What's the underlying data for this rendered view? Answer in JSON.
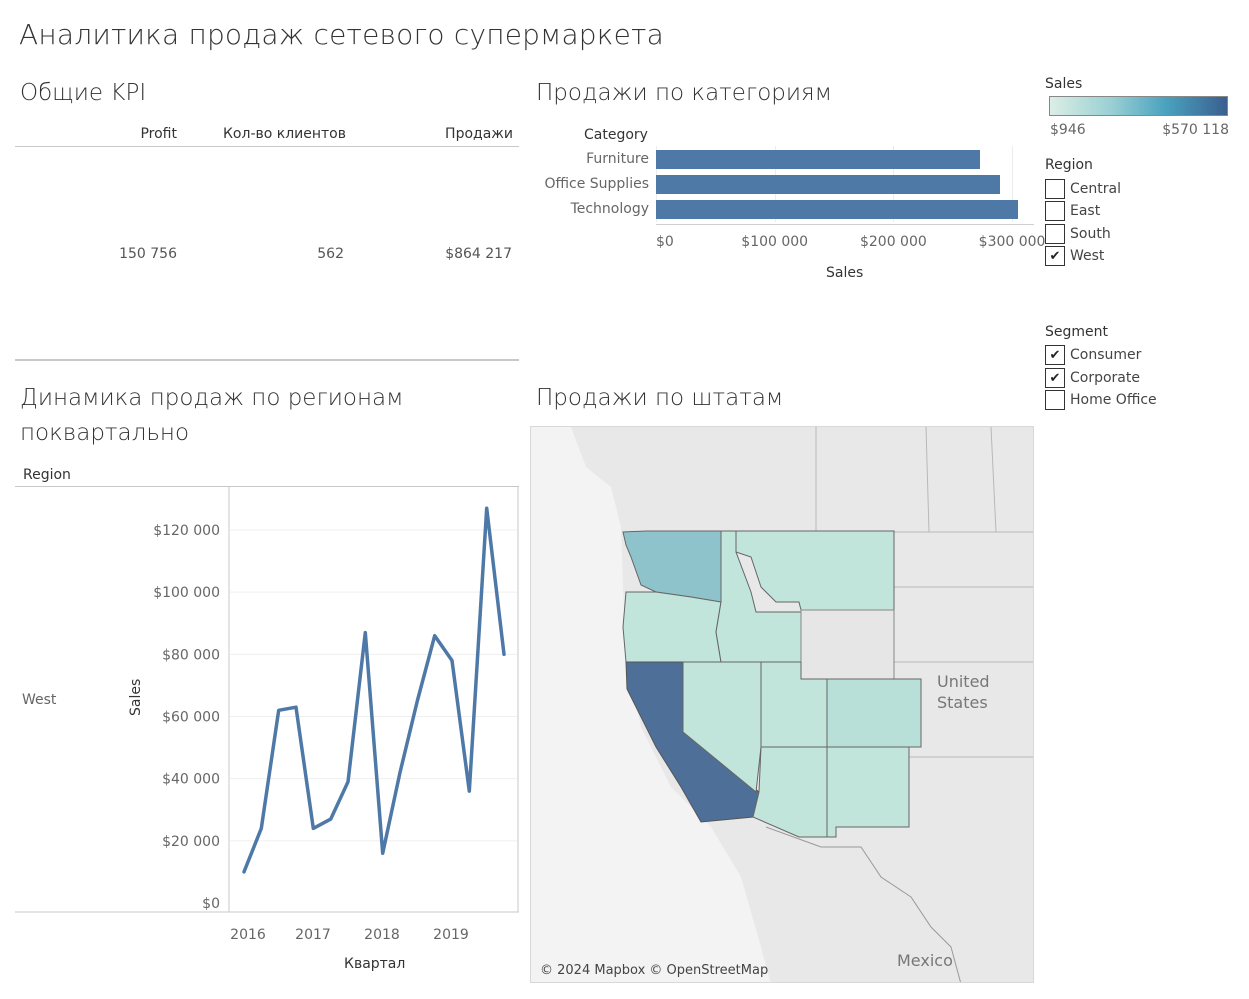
{
  "dashboard": {
    "title": "Аналитика продаж сетевого супермаркета"
  },
  "kpi": {
    "title": "Общие KPI",
    "headers": [
      "Profit",
      "Кол-во клиентов",
      "Продажи"
    ],
    "values": [
      "150 756",
      "562",
      "$864 217"
    ]
  },
  "categories_panel": {
    "title": "Продажи по категориям",
    "category_header": "Category",
    "xlabel": "Sales",
    "ticks": [
      "$0",
      "$100 000",
      "$200 000",
      "$300 000"
    ]
  },
  "line_panel": {
    "title_line1": "Динамика продаж по регионам",
    "title_line2": "поквартально",
    "region_header": "Region",
    "row_label": "West",
    "ylabel": "Sales",
    "xlabel": "Квартал",
    "y_ticks": [
      "$120 000",
      "$100 000",
      "$80 000",
      "$60 000",
      "$40 000",
      "$20 000",
      "$0"
    ],
    "x_ticks": [
      "2016",
      "2017",
      "2018",
      "2019"
    ]
  },
  "map_panel": {
    "title": "Продажи по штатам",
    "label_country_1": "United",
    "label_country_2": "States",
    "label_mexico": "Mexico",
    "attribution": "© 2024 Mapbox © OpenStreetMap"
  },
  "legend": {
    "sales_title": "Sales",
    "sales_min": "$946",
    "sales_max": "$570 118",
    "gradient_start": "#dbeee5",
    "gradient_end": "#3a5f8f",
    "region_title": "Region",
    "regions": [
      {
        "label": "Central",
        "checked": false
      },
      {
        "label": "East",
        "checked": false
      },
      {
        "label": "South",
        "checked": false
      },
      {
        "label": "West",
        "checked": true
      }
    ],
    "segment_title": "Segment",
    "segments": [
      {
        "label": "Consumer",
        "checked": true
      },
      {
        "label": "Corporate",
        "checked": true
      },
      {
        "label": "Home Office",
        "checked": false
      }
    ]
  },
  "colors": {
    "bar": "#4e79a7",
    "line": "#4e79a7",
    "california": "#4e6f97",
    "washington": "#8fc3cc",
    "light_state": "#c1e4db"
  },
  "chart_data": [
    {
      "type": "bar",
      "title": "Продажи по категориям",
      "categories": [
        "Furniture",
        "Office Supplies",
        "Technology"
      ],
      "values": [
        273000,
        290000,
        305000
      ],
      "xlabel": "Sales",
      "ylabel": "Category",
      "xlim": [
        0,
        315000
      ],
      "grid": true
    },
    {
      "type": "line",
      "title": "Динамика продаж по регионам поквартально",
      "series": [
        {
          "name": "West",
          "x": [
            "2016 Q1",
            "2016 Q2",
            "2016 Q3",
            "2016 Q4",
            "2017 Q1",
            "2017 Q2",
            "2017 Q3",
            "2017 Q4",
            "2018 Q1",
            "2018 Q2",
            "2018 Q3",
            "2018 Q4",
            "2019 Q1",
            "2019 Q2",
            "2019 Q3",
            "2019 Q4"
          ],
          "values": [
            10000,
            24000,
            62000,
            63000,
            24000,
            27000,
            39000,
            87000,
            16000,
            42000,
            65000,
            86000,
            78000,
            36000,
            127000,
            80000
          ]
        }
      ],
      "xlabel": "Квартал",
      "ylabel": "Sales",
      "ylim": [
        0,
        130000
      ],
      "grid": true
    },
    {
      "type": "map",
      "title": "Продажи по штатам",
      "regions": [
        "Washington",
        "Oregon",
        "California",
        "Idaho",
        "Montana",
        "Wyoming",
        "Nevada",
        "Utah",
        "Colorado",
        "Arizona",
        "New Mexico"
      ],
      "relative_sales": [
        "medium",
        "low",
        "high",
        "low",
        "low",
        "none",
        "low",
        "low",
        "low",
        "low",
        "low"
      ]
    }
  ]
}
